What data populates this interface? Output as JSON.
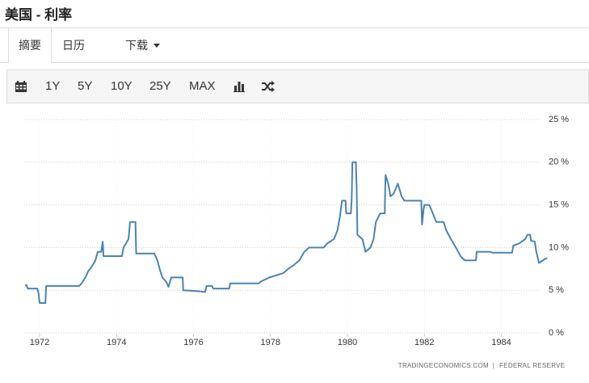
{
  "header": {
    "title": "美国 - 利率"
  },
  "tabs": [
    "摘要",
    "日历",
    "下载"
  ],
  "toolbar": [
    "1Y",
    "5Y",
    "10Y",
    "25Y",
    "MAX"
  ],
  "chart_data": {
    "type": "line",
    "source": [
      "TRADINGECONOMICS.COM",
      "FEDERAL RESERVE"
    ],
    "x": [
      1971.62,
      1971.66,
      1971.69,
      1971.94,
      1971.97,
      1972.0,
      1972.15,
      1972.17,
      1973.03,
      1973.09,
      1973.19,
      1973.26,
      1973.36,
      1973.45,
      1973.51,
      1973.6,
      1973.64,
      1973.66,
      1974.14,
      1974.18,
      1974.31,
      1974.35,
      1974.49,
      1974.51,
      1974.98,
      1975.06,
      1975.12,
      1975.19,
      1975.29,
      1975.35,
      1975.42,
      1975.72,
      1975.73,
      1976.08,
      1976.3,
      1976.34,
      1976.48,
      1976.51,
      1976.93,
      1976.95,
      1977.7,
      1977.74,
      1977.97,
      1978.12,
      1978.33,
      1978.46,
      1978.62,
      1978.75,
      1978.88,
      1979.0,
      1979.38,
      1979.48,
      1979.65,
      1979.74,
      1979.8,
      1979.86,
      1979.95,
      1979.97,
      1980.09,
      1980.11,
      1980.13,
      1980.22,
      1980.24,
      1980.26,
      1980.39,
      1980.47,
      1980.6,
      1980.68,
      1980.74,
      1980.85,
      1980.97,
      1980.99,
      1981.06,
      1981.12,
      1981.2,
      1981.31,
      1981.41,
      1981.48,
      1981.92,
      1981.94,
      1981.98,
      1982.0,
      1982.13,
      1982.31,
      1982.5,
      1982.57,
      1982.69,
      1982.82,
      1982.88,
      1982.94,
      1983.05,
      1983.34,
      1983.36,
      1983.7,
      1983.78,
      1984.28,
      1984.31,
      1984.47,
      1984.62,
      1984.68,
      1984.75,
      1984.77,
      1984.87,
      1984.91,
      1984.98,
      1985.08,
      1985.19
    ],
    "series": [
      {
        "color": "#4a83b5",
        "values": [
          5.6,
          5.6,
          5.2,
          5.2,
          4.7,
          3.5,
          3.5,
          5.5,
          5.5,
          5.8,
          6.5,
          7.2,
          7.8,
          8.5,
          9.5,
          9.5,
          10.7,
          9.0,
          9.0,
          10.0,
          11.0,
          13.0,
          13.0,
          9.3,
          9.3,
          8.5,
          7.5,
          6.5,
          6.0,
          5.4,
          6.5,
          6.5,
          5.0,
          4.9,
          4.8,
          5.5,
          5.5,
          5.2,
          5.2,
          5.8,
          5.8,
          6.0,
          6.5,
          6.7,
          7.0,
          7.5,
          8.0,
          8.5,
          9.5,
          10.0,
          10.0,
          10.5,
          11.0,
          12.0,
          13.5,
          15.5,
          15.5,
          14.0,
          14.0,
          15.5,
          20.0,
          20.0,
          17.0,
          11.5,
          11.0,
          9.5,
          10.0,
          11.0,
          13.0,
          14.0,
          14.0,
          18.5,
          17.5,
          16.0,
          16.3,
          17.5,
          16.0,
          15.5,
          15.5,
          12.7,
          14.5,
          15.0,
          15.0,
          13.0,
          13.0,
          12.0,
          11.0,
          10.0,
          9.5,
          9.0,
          8.5,
          8.5,
          9.5,
          9.5,
          9.4,
          9.4,
          10.2,
          10.5,
          11.0,
          11.5,
          11.5,
          10.8,
          10.7,
          9.5,
          8.2,
          8.5,
          8.8
        ]
      }
    ],
    "xlim": [
      1971.6,
      1985.25
    ],
    "xticks": [
      1972,
      1974,
      1976,
      1978,
      1980,
      1982,
      1984
    ],
    "ylim": [
      0,
      25
    ],
    "yticks": [
      {
        "value": 0,
        "label": "0 %"
      },
      {
        "value": 5,
        "label": "5 %"
      },
      {
        "value": 10,
        "label": "10 %"
      },
      {
        "value": 15,
        "label": "15 %"
      },
      {
        "value": 20,
        "label": "20 %"
      },
      {
        "value": 25,
        "label": "25 %"
      }
    ],
    "grid": true
  }
}
